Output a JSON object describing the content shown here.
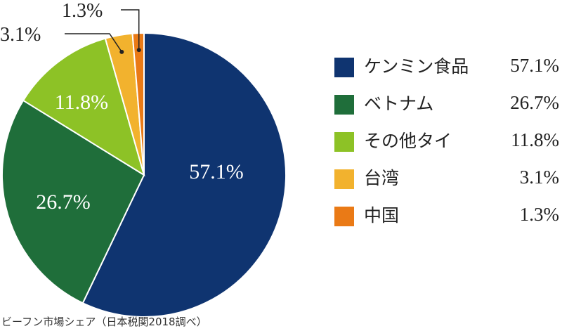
{
  "chart_data": {
    "type": "pie",
    "categories": [
      "ケンミン食品",
      "ベトナム",
      "その他タイ",
      "台湾",
      "中国"
    ],
    "values": [
      57.1,
      26.7,
      11.8,
      3.1,
      1.3
    ],
    "labels": [
      "57.1%",
      "26.7%",
      "11.8%",
      "3.1%",
      "1.3%"
    ],
    "colors": [
      "#0f3470",
      "#1f6e3a",
      "#8dc226",
      "#f2b22e",
      "#ea7a16"
    ],
    "start": "12 o'clock",
    "direction": "clockwise",
    "legend": "right"
  },
  "caption": "ビーフン市場シェア（日本税関2018調べ）"
}
